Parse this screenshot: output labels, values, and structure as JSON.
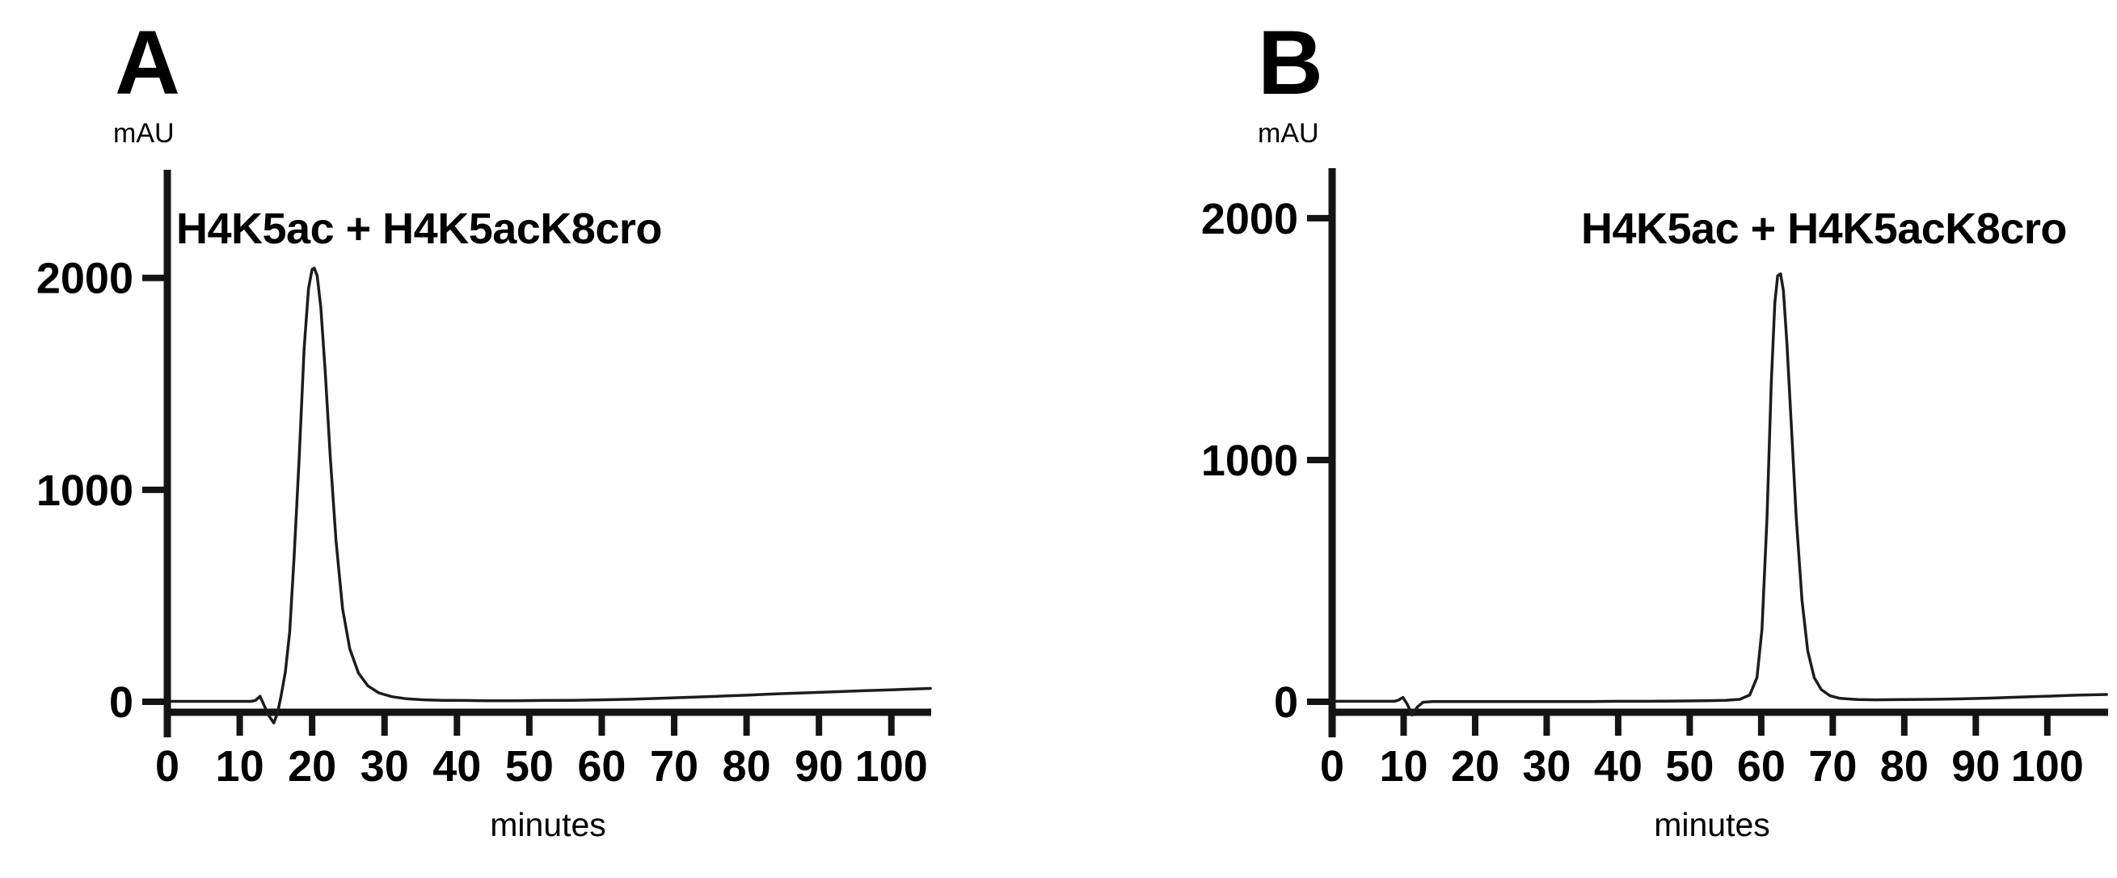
{
  "figure": {
    "background": "#ffffff",
    "text_color": "#000000",
    "axis_color": "#141414",
    "trace_color": "#1c1c1c"
  },
  "chart_data": [
    {
      "type": "line",
      "panel_label": "A",
      "ylabel": "mAU",
      "xlabel": "minutes",
      "annotation": "H4K5ac + H4K5acK8cro",
      "xlim": [
        0,
        105.5
      ],
      "ylim": [
        0,
        2510
      ],
      "xticks": [
        0,
        10,
        20,
        30,
        40,
        50,
        60,
        70,
        80,
        90,
        100
      ],
      "yticks": [
        0,
        1000,
        2000
      ],
      "grid": false,
      "legend": "none",
      "peak": {
        "retention_time_min": 20.2,
        "height_mAU": 2045
      },
      "series": [
        {
          "name": "H4K5ac + H4K5acK8cro",
          "color": "#1c1c1c",
          "points": [
            [
              0,
              2
            ],
            [
              3,
              2
            ],
            [
              6,
              2
            ],
            [
              9,
              2
            ],
            [
              11.6,
              2
            ],
            [
              12.2,
              7
            ],
            [
              12.8,
              26
            ],
            [
              13.3,
              -12
            ],
            [
              14.0,
              -65
            ],
            [
              14.7,
              -100
            ],
            [
              15.2,
              -55
            ],
            [
              15.7,
              25
            ],
            [
              16.3,
              140
            ],
            [
              16.9,
              330
            ],
            [
              17.5,
              680
            ],
            [
              18.2,
              1140
            ],
            [
              18.9,
              1670
            ],
            [
              19.5,
              1950
            ],
            [
              20.0,
              2040
            ],
            [
              20.3,
              2046
            ],
            [
              20.7,
              2010
            ],
            [
              21.2,
              1860
            ],
            [
              21.8,
              1560
            ],
            [
              22.5,
              1160
            ],
            [
              23.3,
              760
            ],
            [
              24.2,
              440
            ],
            [
              25.2,
              250
            ],
            [
              26.4,
              135
            ],
            [
              27.7,
              75
            ],
            [
              29.2,
              42
            ],
            [
              31,
              24
            ],
            [
              33,
              14
            ],
            [
              35.5,
              9
            ],
            [
              38,
              7
            ],
            [
              41,
              6
            ],
            [
              44,
              5
            ],
            [
              48,
              5
            ],
            [
              52,
              6
            ],
            [
              56,
              7
            ],
            [
              60,
              9
            ],
            [
              64,
              12
            ],
            [
              68,
              16
            ],
            [
              72,
              21
            ],
            [
              76,
              26
            ],
            [
              80,
              31
            ],
            [
              84,
              37
            ],
            [
              88,
              42
            ],
            [
              92,
              47
            ],
            [
              96,
              52
            ],
            [
              100,
              56
            ],
            [
              103,
              60
            ],
            [
              105.4,
              63
            ]
          ]
        }
      ]
    },
    {
      "type": "line",
      "panel_label": "B",
      "ylabel": "mAU",
      "xlabel": "minutes",
      "annotation": "H4K5ac + H4K5acK8cro",
      "xlim": [
        0,
        108.5
      ],
      "ylim": [
        0,
        2207
      ],
      "xticks": [
        0,
        10,
        20,
        30,
        40,
        50,
        60,
        70,
        80,
        90,
        100
      ],
      "yticks": [
        0,
        1000,
        2000
      ],
      "grid": false,
      "legend": "none",
      "peak": {
        "retention_time_min": 62.5,
        "height_mAU": 1770
      },
      "series": [
        {
          "name": "H4K5ac + H4K5acK8cro",
          "color": "#1c1c1c",
          "points": [
            [
              0,
              2
            ],
            [
              3,
              2
            ],
            [
              6,
              2
            ],
            [
              8.7,
              2
            ],
            [
              9.3,
              7
            ],
            [
              9.9,
              18
            ],
            [
              10.5,
              -10
            ],
            [
              11.2,
              -55
            ],
            [
              11.9,
              -22
            ],
            [
              12.7,
              -2
            ],
            [
              14,
              1
            ],
            [
              17,
              1
            ],
            [
              20,
              1
            ],
            [
              24,
              1
            ],
            [
              28,
              1
            ],
            [
              32,
              1
            ],
            [
              36,
              1
            ],
            [
              40,
              2
            ],
            [
              44,
              2
            ],
            [
              48,
              3
            ],
            [
              52,
              4
            ],
            [
              55,
              6
            ],
            [
              57,
              10
            ],
            [
              58.4,
              28
            ],
            [
              59.4,
              100
            ],
            [
              60.1,
              300
            ],
            [
              60.8,
              760
            ],
            [
              61.4,
              1320
            ],
            [
              61.9,
              1650
            ],
            [
              62.3,
              1762
            ],
            [
              62.7,
              1770
            ],
            [
              63.1,
              1700
            ],
            [
              63.6,
              1480
            ],
            [
              64.2,
              1150
            ],
            [
              64.9,
              760
            ],
            [
              65.7,
              420
            ],
            [
              66.5,
              210
            ],
            [
              67.4,
              100
            ],
            [
              68.4,
              50
            ],
            [
              69.6,
              25
            ],
            [
              71,
              14
            ],
            [
              73.5,
              9
            ],
            [
              76,
              8
            ],
            [
              80,
              9
            ],
            [
              84,
              10
            ],
            [
              88,
              12
            ],
            [
              92,
              15
            ],
            [
              96,
              19
            ],
            [
              100,
              23
            ],
            [
              104,
              27
            ],
            [
              108.3,
              30
            ]
          ]
        }
      ]
    }
  ]
}
